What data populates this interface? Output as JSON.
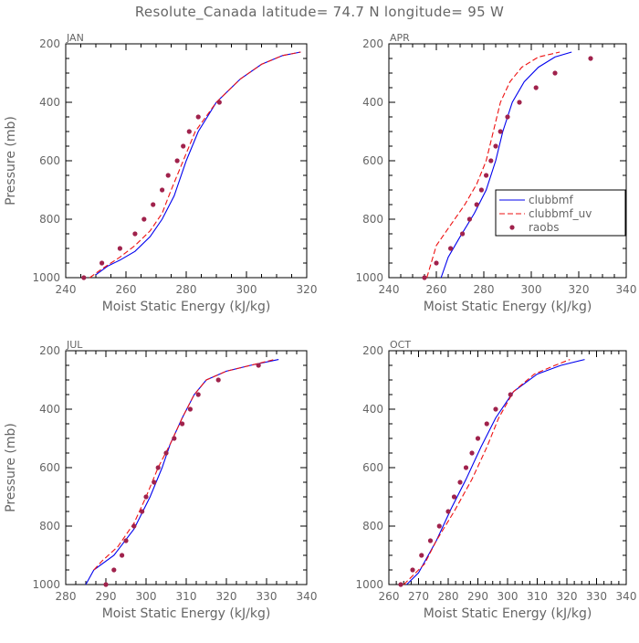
{
  "figure_title": "Resolute_Canada  latitude= 74.7 N longitude= 95 W",
  "colors": {
    "clubbmf": "#0000ee",
    "clubbmf_uv": "#ee1111",
    "raobs": "#a0224c",
    "axis": "#000000",
    "label": "#666666"
  },
  "chart_data": [
    {
      "type": "line",
      "title": "JAN",
      "xlabel": "Moist Static Energy (kJ/kg)",
      "ylabel": "Pressure (mb)",
      "xlim": [
        240,
        320
      ],
      "ylim": [
        200,
        1000
      ],
      "y_inverted": true,
      "xticks": [
        240,
        260,
        280,
        300,
        320
      ],
      "yticks": [
        200,
        400,
        600,
        800,
        1000
      ],
      "show_legend": false,
      "series": [
        {
          "name": "clubbmf",
          "style": "solid",
          "x": [
            250,
            254,
            258,
            263,
            268,
            272,
            276,
            280,
            284,
            290,
            298,
            305,
            312,
            318
          ],
          "y": [
            990,
            960,
            940,
            910,
            860,
            800,
            720,
            600,
            500,
            400,
            320,
            270,
            240,
            228
          ]
        },
        {
          "name": "clubbmf_uv",
          "style": "dashed",
          "x": [
            248,
            252,
            258,
            263,
            268,
            272,
            275,
            279,
            283,
            290,
            298,
            305,
            312,
            318
          ],
          "y": [
            1000,
            970,
            930,
            890,
            840,
            780,
            700,
            600,
            500,
            400,
            320,
            270,
            240,
            228
          ]
        },
        {
          "name": "raobs",
          "style": "markers",
          "x": [
            246,
            252,
            258,
            263,
            266,
            269,
            272,
            274,
            277,
            279,
            281,
            284,
            291
          ],
          "y": [
            1000,
            950,
            900,
            850,
            800,
            750,
            700,
            650,
            600,
            550,
            500,
            450,
            400
          ]
        }
      ]
    },
    {
      "type": "line",
      "title": "APR",
      "xlabel": "Moist Static Energy (kJ/kg)",
      "ylabel": "",
      "xlim": [
        240,
        340
      ],
      "ylim": [
        200,
        1000
      ],
      "y_inverted": true,
      "xticks": [
        240,
        260,
        280,
        300,
        320,
        340
      ],
      "yticks": [
        200,
        400,
        600,
        800,
        1000
      ],
      "show_legend": true,
      "legend_position": "right-middle",
      "series": [
        {
          "name": "clubbmf",
          "style": "solid",
          "x": [
            262,
            265,
            270,
            276,
            281,
            285,
            288,
            292,
            297,
            303,
            310,
            317
          ],
          "y": [
            1000,
            930,
            860,
            780,
            700,
            600,
            500,
            400,
            330,
            280,
            245,
            228
          ]
        },
        {
          "name": "clubbmf_uv",
          "style": "dashed",
          "x": [
            256,
            260,
            266,
            272,
            277,
            281,
            284,
            287,
            291,
            296,
            303,
            312
          ],
          "y": [
            1000,
            890,
            820,
            750,
            680,
            600,
            500,
            400,
            330,
            280,
            245,
            228
          ]
        },
        {
          "name": "raobs",
          "style": "markers",
          "x": [
            255,
            260,
            266,
            271,
            274,
            277,
            279,
            281,
            283,
            285,
            287,
            290,
            295,
            302,
            310,
            325
          ],
          "y": [
            1000,
            950,
            900,
            850,
            800,
            750,
            700,
            650,
            600,
            550,
            500,
            450,
            400,
            350,
            300,
            250
          ]
        }
      ]
    },
    {
      "type": "line",
      "title": "JUL",
      "xlabel": "Moist Static Energy (kJ/kg)",
      "ylabel": "Pressure (mb)",
      "xlim": [
        280,
        340
      ],
      "ylim": [
        200,
        1000
      ],
      "y_inverted": true,
      "xticks": [
        280,
        290,
        300,
        310,
        320,
        330,
        340
      ],
      "yticks": [
        200,
        400,
        600,
        800,
        1000
      ],
      "show_legend": false,
      "series": [
        {
          "name": "clubbmf",
          "style": "solid",
          "x": [
            285,
            287,
            292,
            297,
            301,
            304,
            306,
            309,
            312,
            315,
            320,
            326,
            333
          ],
          "y": [
            1000,
            950,
            900,
            810,
            700,
            600,
            520,
            430,
            350,
            300,
            270,
            250,
            230
          ]
        },
        {
          "name": "clubbmf_uv",
          "style": "dashed",
          "x": [
            287,
            289,
            293,
            297,
            300,
            303,
            306,
            309,
            312,
            315,
            320,
            326,
            332
          ],
          "y": [
            950,
            920,
            870,
            790,
            700,
            600,
            520,
            430,
            350,
            300,
            270,
            250,
            230
          ]
        },
        {
          "name": "raobs",
          "style": "markers",
          "x": [
            290,
            292,
            294,
            295,
            297,
            299,
            300,
            302,
            303,
            305,
            307,
            309,
            311,
            313,
            318,
            328
          ],
          "y": [
            1000,
            950,
            900,
            850,
            800,
            750,
            700,
            650,
            600,
            550,
            500,
            450,
            400,
            350,
            300,
            250
          ]
        }
      ]
    },
    {
      "type": "line",
      "title": "OCT",
      "xlabel": "Moist Static Energy (kJ/kg)",
      "ylabel": "",
      "xlim": [
        260,
        340
      ],
      "ylim": [
        200,
        1000
      ],
      "y_inverted": true,
      "xticks": [
        260,
        270,
        280,
        290,
        300,
        310,
        320,
        330,
        340
      ],
      "yticks": [
        200,
        400,
        600,
        800,
        1000
      ],
      "show_legend": false,
      "series": [
        {
          "name": "clubbmf",
          "style": "solid",
          "x": [
            266,
            270,
            276,
            281,
            286,
            291,
            296,
            302,
            310,
            318,
            326
          ],
          "y": [
            1000,
            960,
            850,
            740,
            640,
            530,
            430,
            340,
            280,
            250,
            230
          ]
        },
        {
          "name": "clubbmf_uv",
          "style": "dashed",
          "x": [
            265,
            272,
            276,
            282,
            288,
            293,
            297,
            302,
            309,
            316,
            321
          ],
          "y": [
            1000,
            930,
            850,
            750,
            640,
            530,
            430,
            340,
            280,
            250,
            230
          ]
        },
        {
          "name": "raobs",
          "style": "markers",
          "x": [
            264,
            268,
            271,
            274,
            277,
            280,
            282,
            284,
            286,
            288,
            290,
            293,
            296,
            301
          ],
          "y": [
            1000,
            950,
            900,
            850,
            800,
            750,
            700,
            650,
            600,
            550,
            500,
            450,
            400,
            350
          ]
        }
      ]
    }
  ]
}
